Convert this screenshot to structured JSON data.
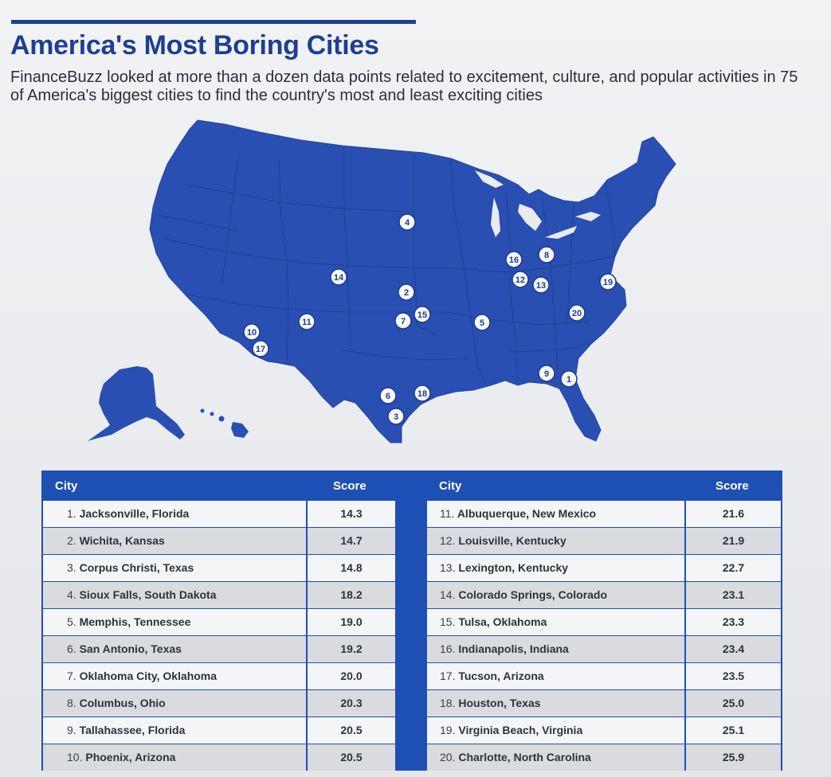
{
  "title": "America's Most Boring Cities",
  "subtitle": "FinanceBuzz looked at more than a dozen data points related to excitement, culture, and popular activities in 75 of America's biggest cities to find the country's most and least exciting cities",
  "colors": {
    "brand": "#1e3f91",
    "map_fill": "#2a4fb3",
    "table_border": "#1e4fb4"
  },
  "map": {
    "markers": [
      "1",
      "2",
      "3",
      "4",
      "5",
      "6",
      "7",
      "8",
      "9",
      "10",
      "11",
      "12",
      "13",
      "14",
      "15",
      "16",
      "17",
      "18",
      "19",
      "20"
    ]
  },
  "table": {
    "headers": {
      "city": "City",
      "score": "Score"
    },
    "rows": [
      {
        "rank": "1.",
        "city": "Jacksonville, Florida",
        "score": "14.3"
      },
      {
        "rank": "2.",
        "city": "Wichita, Kansas",
        "score": "14.7"
      },
      {
        "rank": "3.",
        "city": "Corpus Christi, Texas",
        "score": "14.8"
      },
      {
        "rank": "4.",
        "city": "Sioux Falls, South Dakota",
        "score": "18.2"
      },
      {
        "rank": "5.",
        "city": "Memphis, Tennessee",
        "score": "19.0"
      },
      {
        "rank": "6.",
        "city": "San Antonio, Texas",
        "score": "19.2"
      },
      {
        "rank": "7.",
        "city": "Oklahoma City, Oklahoma",
        "score": "20.0"
      },
      {
        "rank": "8.",
        "city": "Columbus, Ohio",
        "score": "20.3"
      },
      {
        "rank": "9.",
        "city": "Tallahassee, Florida",
        "score": "20.5"
      },
      {
        "rank": "10.",
        "city": "Phoenix, Arizona",
        "score": "20.5"
      },
      {
        "rank": "11.",
        "city": "Albuquerque, New Mexico",
        "score": "21.6"
      },
      {
        "rank": "12.",
        "city": "Louisville, Kentucky",
        "score": "21.9"
      },
      {
        "rank": "13.",
        "city": "Lexington, Kentucky",
        "score": "22.7"
      },
      {
        "rank": "14.",
        "city": "Colorado Springs, Colorado",
        "score": "23.1"
      },
      {
        "rank": "15.",
        "city": "Tulsa, Oklahoma",
        "score": "23.3"
      },
      {
        "rank": "16.",
        "city": "Indianapolis, Indiana",
        "score": "23.4"
      },
      {
        "rank": "17.",
        "city": "Tucson, Arizona",
        "score": "23.5"
      },
      {
        "rank": "18.",
        "city": "Houston, Texas",
        "score": "25.0"
      },
      {
        "rank": "19.",
        "city": "Virginia Beach, Virginia",
        "score": "25.1"
      },
      {
        "rank": "20.",
        "city": "Charlotte, North Carolina",
        "score": "25.9"
      }
    ]
  }
}
